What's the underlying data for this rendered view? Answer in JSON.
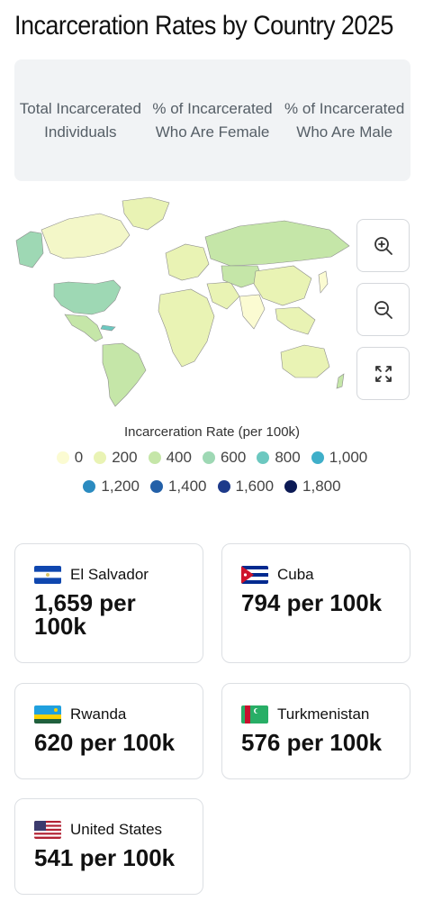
{
  "page_title": "Incarceration Rates by Country 2025",
  "tabs": [
    {
      "label": "Total Incarcerated Individuals"
    },
    {
      "label": "% of Incarcerated Who Are Female"
    },
    {
      "label": "% of Incarcerated Who Are Male"
    }
  ],
  "map_controls": {
    "zoom_in": "zoom-in-icon",
    "zoom_out": "zoom-out-icon",
    "fullscreen": "fullscreen-icon"
  },
  "legend": {
    "title": "Incarceration Rate (per 100k)",
    "items": [
      {
        "label": "0",
        "color": "#fbfbd2"
      },
      {
        "label": "200",
        "color": "#e9f3b4"
      },
      {
        "label": "400",
        "color": "#c5e6a8"
      },
      {
        "label": "600",
        "color": "#9ed8b4"
      },
      {
        "label": "800",
        "color": "#6cc8c0"
      },
      {
        "label": "1,000",
        "color": "#3fafc9"
      },
      {
        "label": "1,200",
        "color": "#2b8bc0"
      },
      {
        "label": "1,400",
        "color": "#2360a8"
      },
      {
        "label": "1,600",
        "color": "#1d3a8a"
      },
      {
        "label": "1,800",
        "color": "#0c1a55"
      }
    ]
  },
  "cards": [
    {
      "country": "El Salvador",
      "value": "1,659 per 100k"
    },
    {
      "country": "Cuba",
      "value": "794 per 100k"
    },
    {
      "country": "Rwanda",
      "value": "620 per 100k"
    },
    {
      "country": "Turkmenistan",
      "value": "576 per 100k"
    },
    {
      "country": "United States",
      "value": "541 per 100k"
    }
  ]
}
